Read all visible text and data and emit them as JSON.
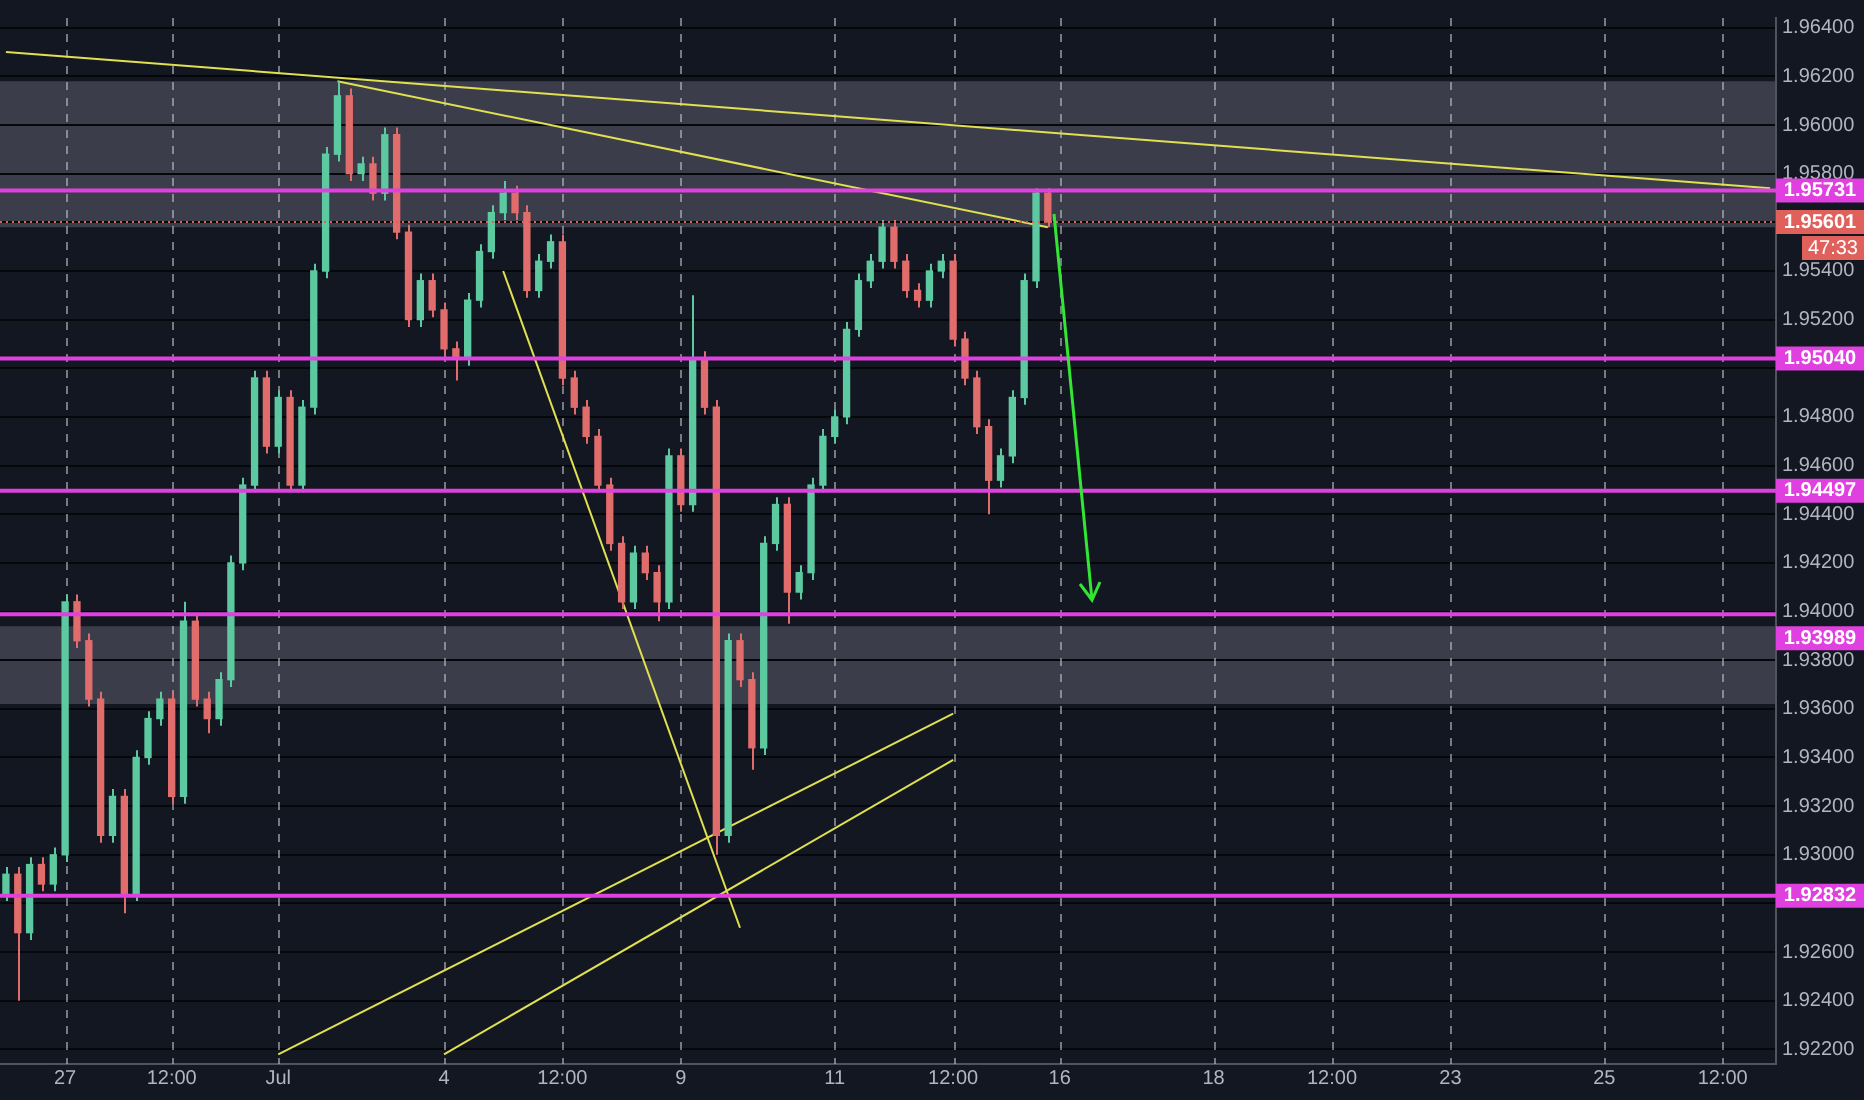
{
  "chart_data": {
    "type": "candlestick",
    "legend": false,
    "grid": true,
    "marker": "none",
    "categories": [
      null,
      null,
      null,
      null,
      null,
      "27",
      null,
      null,
      null,
      null,
      null,
      null,
      null,
      null,
      "12:00",
      null,
      null,
      null,
      null,
      null,
      null,
      null,
      null,
      "Jul",
      null,
      null,
      null,
      null,
      null,
      null,
      null,
      null,
      null,
      null,
      null,
      null,
      null,
      "4",
      null,
      null,
      null,
      null,
      null,
      null,
      null,
      null,
      null,
      "12:00",
      null,
      null,
      null,
      null,
      null,
      null,
      null,
      null,
      null,
      "9",
      null,
      null,
      null,
      null,
      null,
      null,
      null,
      null,
      null,
      null,
      null,
      null,
      "11",
      null,
      null,
      null,
      null,
      null,
      null,
      null,
      null,
      null,
      "12:00",
      null,
      null,
      null,
      null,
      null,
      null,
      null,
      null,
      "16",
      null,
      null,
      null,
      null,
      null,
      null,
      null,
      null,
      null,
      null,
      null,
      null,
      "18",
      null,
      null,
      null,
      null,
      null,
      null,
      null,
      null,
      null,
      "12:00",
      null,
      null,
      null,
      null,
      null,
      null,
      null,
      null,
      null,
      "23",
      null,
      null,
      null,
      null,
      null,
      null,
      null,
      null,
      null,
      null,
      null,
      null,
      "25",
      null,
      null,
      null,
      null,
      null,
      null,
      null,
      null,
      null,
      "12:00",
      null,
      null,
      null,
      null
    ],
    "ylim": [
      1.9214,
      1.9644
    ],
    "yticks": [
      {
        "value": 1.922,
        "label": "1.92200"
      },
      {
        "value": 1.924,
        "label": "1.92400"
      },
      {
        "value": 1.926,
        "label": "1.92600"
      },
      {
        "value": 1.928,
        "label": null
      },
      {
        "value": 1.93,
        "label": "1.93000"
      },
      {
        "value": 1.932,
        "label": "1.93200"
      },
      {
        "value": 1.934,
        "label": "1.93400"
      },
      {
        "value": 1.936,
        "label": "1.93600"
      },
      {
        "value": 1.938,
        "label": "1.93800"
      },
      {
        "value": 1.94,
        "label": "1.94000"
      },
      {
        "value": 1.942,
        "label": "1.94200"
      },
      {
        "value": 1.944,
        "label": "1.94400"
      },
      {
        "value": 1.946,
        "label": "1.94600"
      },
      {
        "value": 1.948,
        "label": "1.94800"
      },
      {
        "value": 1.95,
        "label": null
      },
      {
        "value": 1.952,
        "label": "1.95200"
      },
      {
        "value": 1.954,
        "label": "1.95400"
      },
      {
        "value": 1.956,
        "label": null
      },
      {
        "value": 1.958,
        "label": "1.95800"
      },
      {
        "value": 1.96,
        "label": "1.96000"
      },
      {
        "value": 1.962,
        "label": "1.96200"
      },
      {
        "value": 1.964,
        "label": "1.96400"
      }
    ],
    "ohlc": [
      [
        1.9284,
        1.9295,
        1.9281,
        1.9292
      ],
      [
        1.9292,
        1.9295,
        1.924,
        1.9268
      ],
      [
        1.9268,
        1.9299,
        1.9265,
        1.9296
      ],
      [
        1.9296,
        1.9299,
        1.9285,
        1.9288
      ],
      [
        1.9288,
        1.9303,
        1.9285,
        1.93
      ],
      [
        1.93,
        1.9407,
        1.9297,
        1.9404
      ],
      [
        1.9404,
        1.9407,
        1.9385,
        1.9388
      ],
      [
        1.9388,
        1.9391,
        1.9361,
        1.9364
      ],
      [
        1.9364,
        1.9367,
        1.9305,
        1.9308
      ],
      [
        1.9308,
        1.9327,
        1.9305,
        1.9324
      ],
      [
        1.9324,
        1.9327,
        1.9276,
        1.9284
      ],
      [
        1.9284,
        1.9343,
        1.9281,
        1.934
      ],
      [
        1.934,
        1.9359,
        1.9337,
        1.9356
      ],
      [
        1.9356,
        1.9367,
        1.9353,
        1.9364
      ],
      [
        1.9364,
        1.9367,
        1.9321,
        1.9324
      ],
      [
        1.9324,
        1.9404,
        1.9321,
        1.9396
      ],
      [
        1.9396,
        1.9399,
        1.9361,
        1.9364
      ],
      [
        1.9364,
        1.9367,
        1.935,
        1.9356
      ],
      [
        1.9356,
        1.9375,
        1.9353,
        1.9372
      ],
      [
        1.9372,
        1.9423,
        1.9369,
        1.942
      ],
      [
        1.942,
        1.9455,
        1.9417,
        1.9452
      ],
      [
        1.9452,
        1.9499,
        1.9449,
        1.9496
      ],
      [
        1.9496,
        1.9499,
        1.9465,
        1.9468
      ],
      [
        1.9468,
        1.9491,
        1.9465,
        1.9488
      ],
      [
        1.9488,
        1.9491,
        1.9449,
        1.9452
      ],
      [
        1.9452,
        1.9487,
        1.9449,
        1.9484
      ],
      [
        1.9484,
        1.9543,
        1.9481,
        1.954
      ],
      [
        1.954,
        1.9591,
        1.9537,
        1.9588
      ],
      [
        1.9588,
        1.9618,
        1.9585,
        1.9612
      ],
      [
        1.9612,
        1.9615,
        1.9577,
        1.958
      ],
      [
        1.958,
        1.9587,
        1.9577,
        1.9584
      ],
      [
        1.9584,
        1.9587,
        1.9569,
        1.9572
      ],
      [
        1.9572,
        1.9599,
        1.9569,
        1.9596
      ],
      [
        1.9596,
        1.9599,
        1.9553,
        1.9556
      ],
      [
        1.9556,
        1.9559,
        1.9517,
        1.952
      ],
      [
        1.952,
        1.9539,
        1.9517,
        1.9536
      ],
      [
        1.9536,
        1.9539,
        1.9521,
        1.9524
      ],
      [
        1.9524,
        1.9527,
        1.9505,
        1.9508
      ],
      [
        1.9508,
        1.9511,
        1.9495,
        1.9504
      ],
      [
        1.9504,
        1.9531,
        1.9501,
        1.9528
      ],
      [
        1.9528,
        1.9551,
        1.9525,
        1.9548
      ],
      [
        1.9548,
        1.9567,
        1.9545,
        1.9564
      ],
      [
        1.9564,
        1.9577,
        1.9561,
        1.9572
      ],
      [
        1.9572,
        1.9575,
        1.9561,
        1.9564
      ],
      [
        1.9564,
        1.9567,
        1.9529,
        1.9532
      ],
      [
        1.9532,
        1.9547,
        1.9529,
        1.9544
      ],
      [
        1.9544,
        1.9555,
        1.9541,
        1.9552
      ],
      [
        1.9552,
        1.9555,
        1.9493,
        1.9496
      ],
      [
        1.9496,
        1.9499,
        1.9481,
        1.9484
      ],
      [
        1.9484,
        1.9487,
        1.9469,
        1.9472
      ],
      [
        1.9472,
        1.9475,
        1.9449,
        1.9452
      ],
      [
        1.9452,
        1.9455,
        1.9425,
        1.9428
      ],
      [
        1.9428,
        1.9431,
        1.9401,
        1.9404
      ],
      [
        1.9404,
        1.9427,
        1.9401,
        1.9424
      ],
      [
        1.9424,
        1.9427,
        1.9413,
        1.9416
      ],
      [
        1.9416,
        1.9419,
        1.9396,
        1.9404
      ],
      [
        1.9404,
        1.9467,
        1.9401,
        1.9464
      ],
      [
        1.9464,
        1.9467,
        1.9441,
        1.9444
      ],
      [
        1.9444,
        1.953,
        1.9441,
        1.9504
      ],
      [
        1.9504,
        1.9507,
        1.9481,
        1.9484
      ],
      [
        1.9484,
        1.9487,
        1.93,
        1.9308
      ],
      [
        1.9308,
        1.9391,
        1.9305,
        1.9388
      ],
      [
        1.9388,
        1.9391,
        1.9369,
        1.9372
      ],
      [
        1.9372,
        1.9375,
        1.9335,
        1.9344
      ],
      [
        1.9344,
        1.9431,
        1.9341,
        1.9428
      ],
      [
        1.9428,
        1.9447,
        1.9425,
        1.9444
      ],
      [
        1.9444,
        1.9447,
        1.9395,
        1.9408
      ],
      [
        1.9408,
        1.9419,
        1.9405,
        1.9416
      ],
      [
        1.9416,
        1.9455,
        1.9413,
        1.9452
      ],
      [
        1.9452,
        1.9475,
        1.9449,
        1.9472
      ],
      [
        1.9472,
        1.9483,
        1.9469,
        1.948
      ],
      [
        1.948,
        1.9519,
        1.9477,
        1.9516
      ],
      [
        1.9516,
        1.9539,
        1.9513,
        1.9536
      ],
      [
        1.9536,
        1.9547,
        1.9533,
        1.9544
      ],
      [
        1.9544,
        1.9561,
        1.9541,
        1.9558
      ],
      [
        1.9558,
        1.9561,
        1.9541,
        1.9544
      ],
      [
        1.9544,
        1.9547,
        1.9529,
        1.9532
      ],
      [
        1.9532,
        1.9535,
        1.9525,
        1.9528
      ],
      [
        1.9528,
        1.9543,
        1.9525,
        1.954
      ],
      [
        1.954,
        1.9547,
        1.9537,
        1.9544
      ],
      [
        1.9544,
        1.9547,
        1.9509,
        1.9512
      ],
      [
        1.9512,
        1.9515,
        1.9493,
        1.9496
      ],
      [
        1.9496,
        1.9499,
        1.9473,
        1.9476
      ],
      [
        1.9476,
        1.9479,
        1.944,
        1.9454
      ],
      [
        1.9454,
        1.9467,
        1.9451,
        1.9464
      ],
      [
        1.9464,
        1.9491,
        1.9461,
        1.9488
      ],
      [
        1.9488,
        1.9539,
        1.9485,
        1.9536
      ],
      [
        1.9536,
        1.9574,
        1.9533,
        1.9572
      ],
      [
        1.9572,
        1.9574,
        1.9558,
        1.95601
      ],
      null,
      null,
      null,
      null,
      null,
      null,
      null,
      null,
      null,
      null,
      null,
      null,
      null,
      null,
      null,
      null,
      null,
      null,
      null,
      null,
      null,
      null,
      null,
      null,
      null,
      null,
      null,
      null,
      null,
      null,
      null,
      null,
      null,
      null,
      null,
      null,
      null,
      null,
      null,
      null,
      null,
      null,
      null,
      null,
      null,
      null,
      null,
      null,
      null,
      null,
      null,
      null,
      null,
      null,
      null,
      null,
      null,
      null,
      null,
      null,
      null
    ],
    "colors": [
      "#5cc9a0",
      "#e06c6c",
      "#5cc9a0",
      "#e06c6c",
      "#5cc9a0",
      "#5cc9a0",
      "#e06c6c",
      "#e06c6c",
      "#e06c6c",
      "#5cc9a0",
      "#e06c6c",
      "#5cc9a0",
      "#5cc9a0",
      "#5cc9a0",
      "#e06c6c",
      "#5cc9a0",
      "#e06c6c",
      "#e06c6c",
      "#5cc9a0",
      "#5cc9a0",
      "#5cc9a0",
      "#5cc9a0",
      "#e06c6c",
      "#5cc9a0",
      "#e06c6c",
      "#5cc9a0",
      "#5cc9a0",
      "#5cc9a0",
      "#5cc9a0",
      "#e06c6c",
      "#5cc9a0",
      "#e06c6c",
      "#5cc9a0",
      "#e06c6c",
      "#e06c6c",
      "#5cc9a0",
      "#e06c6c",
      "#e06c6c",
      "#e06c6c",
      "#5cc9a0",
      "#5cc9a0",
      "#5cc9a0",
      "#5cc9a0",
      "#e06c6c",
      "#e06c6c",
      "#5cc9a0",
      "#5cc9a0",
      "#e06c6c",
      "#e06c6c",
      "#e06c6c",
      "#e06c6c",
      "#e06c6c",
      "#e06c6c",
      "#5cc9a0",
      "#e06c6c",
      "#e06c6c",
      "#5cc9a0",
      "#e06c6c",
      "#5cc9a0",
      "#e06c6c",
      "#e06c6c",
      "#5cc9a0",
      "#e06c6c",
      "#e06c6c",
      "#5cc9a0",
      "#5cc9a0",
      "#e06c6c",
      "#5cc9a0",
      "#5cc9a0",
      "#5cc9a0",
      "#5cc9a0",
      "#5cc9a0",
      "#5cc9a0",
      "#5cc9a0",
      "#5cc9a0",
      "#e06c6c",
      "#e06c6c",
      "#e06c6c",
      "#5cc9a0",
      "#5cc9a0",
      "#e06c6c",
      "#e06c6c",
      "#e06c6c",
      "#e06c6c",
      "#5cc9a0",
      "#5cc9a0",
      "#5cc9a0",
      "#5cc9a0",
      "#e06c6c",
      null,
      null,
      null,
      null,
      null,
      null,
      null,
      null,
      null,
      null,
      null,
      null,
      null,
      null,
      null,
      null,
      null,
      null,
      null,
      null,
      null,
      null,
      null,
      null,
      null,
      null,
      null,
      null,
      null,
      null,
      null,
      null,
      null,
      null,
      null,
      null,
      null,
      null,
      null,
      null,
      null,
      null,
      null,
      null,
      null,
      null,
      null,
      null,
      null,
      null,
      null,
      null,
      null,
      null,
      null,
      null,
      null,
      null,
      null,
      null,
      null
    ],
    "series": [
      {
        "type": "line",
        "color": "#e0e050",
        "values": [
          1.963,
          null,
          null,
          null,
          null,
          null,
          null,
          null,
          null,
          null,
          null,
          null,
          null,
          null,
          null,
          null,
          null,
          null,
          null,
          null,
          null,
          null,
          null,
          null,
          null,
          null,
          null,
          null,
          null,
          null,
          null,
          null,
          null,
          null,
          null,
          null,
          null,
          null,
          null,
          null,
          null,
          null,
          null,
          null,
          null,
          null,
          null,
          null,
          null,
          null,
          null,
          null,
          null,
          null,
          null,
          null,
          null,
          null,
          null,
          null,
          null,
          null,
          null,
          null,
          null,
          null,
          null,
          null,
          null,
          null,
          null,
          null,
          null,
          null,
          null,
          null,
          null,
          null,
          null,
          null,
          null,
          null,
          null,
          null,
          null,
          null,
          null,
          null,
          null,
          null,
          null,
          null,
          null,
          null,
          null,
          null,
          null,
          null,
          null,
          null,
          null,
          null,
          null,
          null,
          null,
          null,
          null,
          null,
          null,
          null,
          null,
          null,
          null,
          null,
          null,
          null,
          null,
          null,
          null,
          null,
          null,
          null,
          null,
          null,
          null,
          null,
          null,
          null,
          null,
          null,
          null,
          null,
          null,
          null,
          null,
          null,
          null,
          null,
          null,
          null,
          null,
          null,
          null,
          null,
          null,
          null,
          null,
          null,
          null,
          1.9574
        ]
      },
      {
        "type": "line",
        "color": "#e0e050",
        "values": [
          null,
          null,
          null,
          null,
          null,
          null,
          null,
          null,
          null,
          null,
          null,
          null,
          null,
          null,
          null,
          null,
          null,
          null,
          null,
          null,
          null,
          null,
          null,
          null,
          null,
          null,
          null,
          null,
          1.9618,
          null,
          null,
          null,
          null,
          null,
          null,
          null,
          null,
          null,
          null,
          null,
          null,
          null,
          null,
          null,
          null,
          null,
          null,
          null,
          null,
          null,
          null,
          null,
          null,
          null,
          null,
          null,
          null,
          null,
          null,
          null,
          null,
          null,
          null,
          null,
          null,
          null,
          null,
          null,
          null,
          null,
          null,
          null,
          null,
          null,
          null,
          null,
          null,
          null,
          null,
          null,
          null,
          null,
          null,
          null,
          null,
          null,
          null,
          null,
          1.9558,
          null,
          null,
          null,
          null,
          null,
          null,
          null,
          null,
          null,
          null,
          null,
          null,
          null,
          null,
          null,
          null,
          null,
          null,
          null,
          null,
          null,
          null,
          null,
          null,
          null,
          null,
          null,
          null,
          null,
          null,
          null,
          null,
          null,
          null,
          null,
          null,
          null,
          null,
          null,
          null,
          null,
          null,
          null,
          null,
          null,
          null,
          null,
          null,
          null,
          null,
          null,
          null,
          null,
          null,
          null,
          null,
          null,
          null,
          null,
          null,
          null
        ]
      },
      {
        "type": "line",
        "color": "#e0e050",
        "values": [
          null,
          null,
          null,
          null,
          null,
          null,
          null,
          null,
          null,
          null,
          null,
          null,
          null,
          null,
          null,
          null,
          null,
          null,
          null,
          null,
          null,
          null,
          null,
          null,
          null,
          null,
          null,
          null,
          null,
          null,
          null,
          null,
          null,
          null,
          null,
          null,
          null,
          null,
          null,
          null,
          null,
          null,
          1.954,
          null,
          null,
          null,
          null,
          null,
          null,
          null,
          null,
          null,
          null,
          null,
          null,
          null,
          null,
          null,
          null,
          null,
          null,
          null,
          1.927,
          null,
          null,
          null,
          null,
          null,
          null,
          null,
          null,
          null,
          null,
          null,
          null,
          null,
          null,
          null,
          null,
          null,
          null,
          null,
          null,
          null,
          null,
          null,
          null,
          null,
          null,
          null,
          null,
          null,
          null,
          null,
          null,
          null,
          null,
          null,
          null,
          null,
          null,
          null,
          null,
          null,
          null,
          null,
          null,
          null,
          null,
          null,
          null,
          null,
          null,
          null,
          null,
          null,
          null,
          null,
          null,
          null,
          null,
          null,
          null,
          null,
          null,
          null,
          null,
          null,
          null,
          null,
          null,
          null,
          null,
          null,
          null,
          null,
          null,
          null,
          null,
          null,
          null,
          null,
          null,
          null,
          null,
          null,
          null,
          null,
          null,
          null
        ]
      },
      {
        "type": "line",
        "color": "#e0e050",
        "values": [
          null,
          null,
          null,
          null,
          null,
          null,
          null,
          null,
          null,
          null,
          null,
          null,
          null,
          null,
          null,
          null,
          null,
          null,
          null,
          null,
          null,
          null,
          null,
          1.9218,
          null,
          null,
          null,
          null,
          null,
          null,
          null,
          null,
          null,
          null,
          null,
          null,
          null,
          null,
          null,
          null,
          null,
          null,
          null,
          null,
          null,
          null,
          null,
          null,
          null,
          null,
          null,
          null,
          null,
          null,
          null,
          null,
          null,
          null,
          null,
          null,
          null,
          null,
          null,
          null,
          null,
          null,
          null,
          null,
          null,
          null,
          null,
          null,
          null,
          null,
          null,
          null,
          null,
          null,
          null,
          null,
          1.9358,
          null,
          null,
          null,
          null,
          null,
          null,
          null,
          null,
          null,
          null,
          null,
          null,
          null,
          null,
          null,
          null,
          null,
          null,
          null,
          null,
          null,
          null,
          null,
          null,
          null,
          null,
          null,
          null,
          null,
          null,
          null,
          null,
          null,
          null,
          null,
          null,
          null,
          null,
          null,
          null,
          null,
          null,
          null,
          null,
          null,
          null,
          null,
          null,
          null,
          null,
          null,
          null,
          null,
          null,
          null,
          null,
          null,
          null,
          null,
          null,
          null,
          null,
          null,
          null,
          null,
          null,
          null,
          null,
          null
        ]
      },
      {
        "type": "line",
        "color": "#e0e050",
        "values": [
          null,
          null,
          null,
          null,
          null,
          null,
          null,
          null,
          null,
          null,
          null,
          null,
          null,
          null,
          null,
          null,
          null,
          null,
          null,
          null,
          null,
          null,
          null,
          null,
          null,
          null,
          null,
          null,
          null,
          null,
          null,
          null,
          null,
          null,
          null,
          null,
          null,
          1.9218,
          null,
          null,
          null,
          null,
          null,
          null,
          null,
          null,
          null,
          null,
          null,
          null,
          null,
          null,
          null,
          null,
          null,
          null,
          null,
          null,
          null,
          null,
          null,
          null,
          null,
          null,
          null,
          null,
          null,
          null,
          null,
          null,
          null,
          null,
          null,
          null,
          null,
          null,
          null,
          null,
          null,
          null,
          1.9339,
          null,
          null,
          null,
          null,
          null,
          null,
          null,
          null,
          null,
          null,
          null,
          null,
          null,
          null,
          null,
          null,
          null,
          null,
          null,
          null,
          null,
          null,
          null,
          null,
          null,
          null,
          null,
          null,
          null,
          null,
          null,
          null,
          null,
          null,
          null,
          null,
          null,
          null,
          null,
          null,
          null,
          null,
          null,
          null,
          null,
          null,
          null,
          null,
          null,
          null,
          null,
          null,
          null,
          null,
          null,
          null,
          null,
          null,
          null,
          null,
          null,
          null,
          null,
          null,
          null,
          null,
          null,
          null,
          null
        ]
      }
    ],
    "bands": [
      {
        "axis": "y",
        "from": 1.9558,
        "to": 1.9618,
        "color": "#787b86"
      },
      {
        "axis": "y",
        "from": 1.9362,
        "to": 1.9394,
        "color": "#787b86"
      }
    ],
    "ref_lines": [
      {
        "axis": "y",
        "value": 1.95731,
        "label": "1.95731",
        "color": "#e040e0"
      },
      {
        "axis": "y",
        "value": 1.9504,
        "label": "1.95040",
        "color": "#e040e0"
      },
      {
        "axis": "y",
        "value": 1.94497,
        "label": "1.94497",
        "color": "#e040e0"
      },
      {
        "axis": "y",
        "value": 1.93989,
        "label": "1.93989",
        "color": "#e040e0"
      },
      {
        "axis": "y",
        "value": 1.92832,
        "label": "1.92832",
        "color": "#e040e0"
      },
      {
        "axis": "y",
        "value": 1.95601,
        "label": "1.95601",
        "color": "#e0605c",
        "line_style": "dotted"
      }
    ],
    "annotations": [
      "47:33"
    ]
  }
}
